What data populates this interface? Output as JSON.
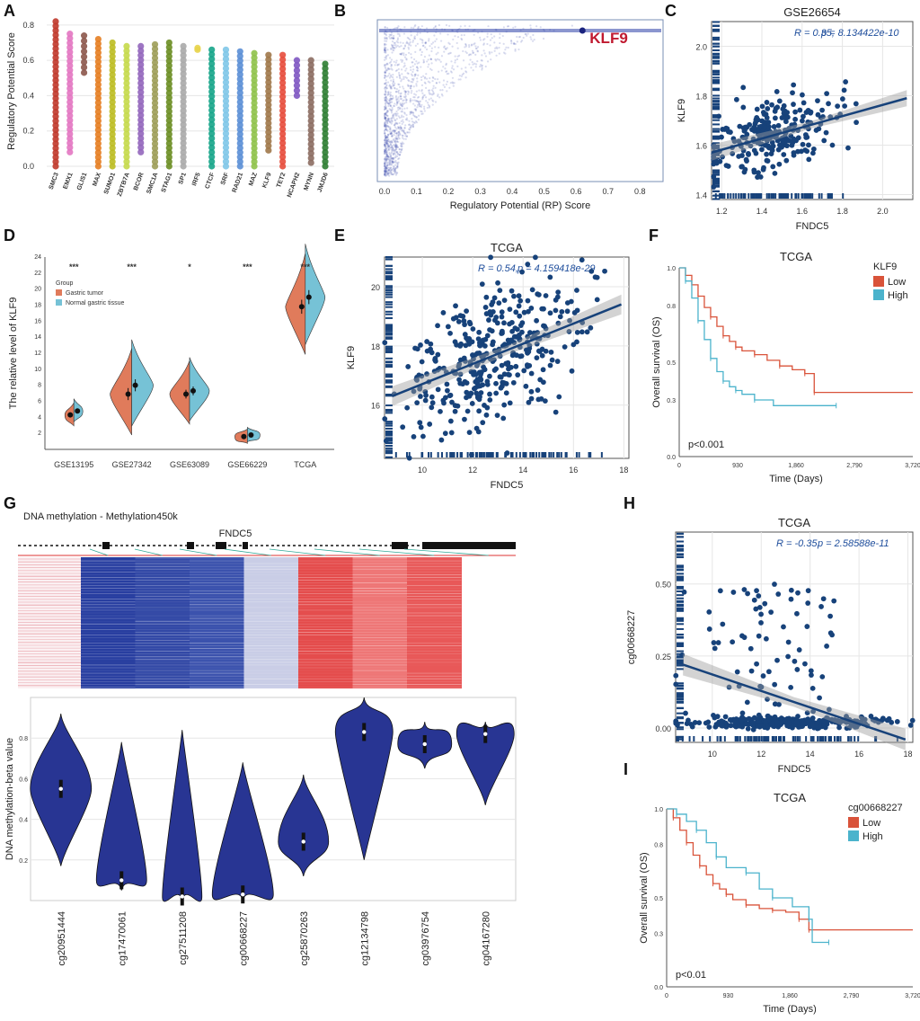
{
  "chart_data": [
    {
      "panel": "A",
      "type": "strip",
      "ylabel": "Regulatory Potential Score",
      "ylim": [
        0,
        0.85
      ],
      "yticks": [
        0.0,
        0.2,
        0.4,
        0.6,
        0.8
      ],
      "categories": [
        "SMC3",
        "EMX1",
        "GLIS1",
        "MAX",
        "SUMO1",
        "ZBTB7A",
        "BCOR",
        "SMC1A",
        "STAG1",
        "SP1",
        "IRF5",
        "CTCF",
        "SRF",
        "RAD21",
        "MAZ",
        "KLF9",
        "TET2",
        "NCAPH2",
        "MYNN",
        "JMJD6"
      ],
      "colors": [
        "#c0392b",
        "#e377c2",
        "#8c564b",
        "#e67e22",
        "#bcbd22",
        "#c5d94b",
        "#9467bd",
        "#9d9d58",
        "#6b8e23",
        "#aaaaaa",
        "#e8d44d",
        "#17a589",
        "#7fc7e8",
        "#5b8fd6",
        "#8fc24a",
        "#a0784a",
        "#e74c3c",
        "#7e57c2",
        "#8c6d62",
        "#2e7d32"
      ],
      "ranges": [
        [
          0.0,
          0.82
        ],
        [
          0.08,
          0.75
        ],
        [
          0.53,
          0.74
        ],
        [
          0.0,
          0.72
        ],
        [
          0.0,
          0.7
        ],
        [
          0.0,
          0.68
        ],
        [
          0.08,
          0.68
        ],
        [
          0.0,
          0.69
        ],
        [
          0.0,
          0.7
        ],
        [
          0.0,
          0.68
        ],
        [
          0.66,
          0.67
        ],
        [
          0.0,
          0.66
        ],
        [
          0.0,
          0.66
        ],
        [
          0.0,
          0.65
        ],
        [
          0.0,
          0.64
        ],
        [
          0.09,
          0.63
        ],
        [
          0.0,
          0.63
        ],
        [
          0.4,
          0.6
        ],
        [
          0.02,
          0.6
        ],
        [
          0.0,
          0.58
        ]
      ]
    },
    {
      "panel": "B",
      "type": "density-scatter",
      "xlabel": "Regulatory Potential (RP) Score",
      "xlim": [
        0,
        0.85
      ],
      "xticks": [
        "0.0",
        "0.1",
        "0.2",
        "0.3",
        "0.4",
        "0.5",
        "0.6",
        "0.7",
        "0.8"
      ],
      "annotation": "KLF9",
      "highlight_x": 0.62
    },
    {
      "panel": "C",
      "type": "scatter",
      "title": "GSE26654",
      "xlabel": "FNDC5",
      "ylabel": "KLF9",
      "xlim": [
        1.15,
        2.15
      ],
      "ylim": [
        1.38,
        2.1
      ],
      "xticks": [
        1.2,
        1.4,
        1.6,
        1.8,
        2.0
      ],
      "yticks": [
        1.4,
        1.6,
        1.8,
        2.0
      ],
      "xtick_labels": [
        "1.2",
        "1.4",
        "1.6",
        "1.8",
        "2.0"
      ],
      "ytick_labels": [
        "1.4",
        "1.6",
        "1.8",
        "2.0"
      ],
      "stat_R": "R = 0.35,",
      "stat_p": "p = 8.134422e-10",
      "fit": {
        "x0": 1.15,
        "y0": 1.57,
        "x1": 2.12,
        "y1": 1.79
      },
      "n_points": 260,
      "center": [
        1.45,
        1.63
      ],
      "spread": [
        0.15,
        0.07
      ]
    },
    {
      "panel": "D",
      "type": "split-violin",
      "ylabel": "The relative level of KLF9",
      "ylim": [
        0,
        24
      ],
      "yticks": [
        2,
        4,
        6,
        8,
        10,
        12,
        14,
        16,
        18,
        20,
        22,
        24
      ],
      "categories": [
        "GSE13195",
        "GSE27342",
        "GSE63089",
        "GSE66229",
        "TCGA"
      ],
      "significance": [
        "***",
        "***",
        "*",
        "***",
        "***"
      ],
      "legend_title": "Group",
      "groups": [
        {
          "name": "Gastric tumor",
          "color": "#e07b5b",
          "means": [
            4.3,
            6.9,
            6.9,
            1.6,
            17.8
          ]
        },
        {
          "name": "Normal gastric tissue",
          "color": "#76c2d6",
          "means": [
            4.8,
            8.0,
            7.3,
            1.8,
            19.0
          ]
        }
      ]
    },
    {
      "panel": "E",
      "type": "scatter",
      "title": "TCGA",
      "xlabel": "FNDC5",
      "ylabel": "KLF9",
      "xlim": [
        8.5,
        18.2
      ],
      "ylim": [
        14.2,
        21.0
      ],
      "xticks": [
        10,
        12,
        14,
        16,
        18
      ],
      "yticks": [
        16,
        18,
        20
      ],
      "xtick_labels": [
        "10",
        "12",
        "14",
        "16",
        "18"
      ],
      "ytick_labels": [
        "16",
        "18",
        "20"
      ],
      "stat_R": "R = 0.54,",
      "stat_p": "p = 4.159418e-29",
      "fit": {
        "x0": 8.8,
        "y0": 16.3,
        "x1": 17.9,
        "y1": 19.4
      },
      "n_points": 380,
      "center": [
        12.8,
        17.7
      ],
      "spread": [
        1.8,
        1.1
      ]
    },
    {
      "panel": "F",
      "type": "km",
      "title": "TCGA",
      "xlabel": "Time (Days)",
      "ylabel": "Overall survival (OS)",
      "xlim": [
        0,
        3720
      ],
      "ylim": [
        0,
        1.0
      ],
      "xticks": [
        0,
        930,
        1860,
        2790,
        3720
      ],
      "yticks": [
        0,
        0.3,
        0.5,
        0.8,
        1.0
      ],
      "xtick_labels": [
        "0",
        "930",
        "1,860",
        "2,790",
        "3,720"
      ],
      "ytick_labels": [
        "0.0",
        "0.3",
        "0.5",
        "0.8",
        "1.0"
      ],
      "legend_title": "KLF9",
      "pvalue": "p<0.001",
      "series": [
        {
          "name": "Low",
          "color": "#d9533a",
          "points": [
            [
              0,
              1.0
            ],
            [
              100,
              0.96
            ],
            [
              200,
              0.91
            ],
            [
              300,
              0.85
            ],
            [
              400,
              0.79
            ],
            [
              500,
              0.74
            ],
            [
              600,
              0.69
            ],
            [
              700,
              0.64
            ],
            [
              800,
              0.61
            ],
            [
              900,
              0.58
            ],
            [
              1000,
              0.56
            ],
            [
              1200,
              0.54
            ],
            [
              1400,
              0.51
            ],
            [
              1600,
              0.48
            ],
            [
              1800,
              0.46
            ],
            [
              2000,
              0.44
            ],
            [
              2150,
              0.44
            ],
            [
              2150,
              0.34
            ],
            [
              3720,
              0.34
            ]
          ]
        },
        {
          "name": "High",
          "color": "#4bb3cc",
          "points": [
            [
              0,
              1.0
            ],
            [
              100,
              0.93
            ],
            [
              200,
              0.84
            ],
            [
              300,
              0.72
            ],
            [
              400,
              0.62
            ],
            [
              500,
              0.52
            ],
            [
              600,
              0.45
            ],
            [
              700,
              0.4
            ],
            [
              800,
              0.37
            ],
            [
              900,
              0.35
            ],
            [
              1000,
              0.33
            ],
            [
              1200,
              0.3
            ],
            [
              1500,
              0.27
            ],
            [
              2500,
              0.27
            ]
          ]
        }
      ]
    },
    {
      "panel": "G",
      "type": "violin",
      "header": "DNA methylation - Methylation450k",
      "gene": "FNDC5",
      "ylabel": "DNA methylation-beta value",
      "ylim": [
        0,
        1.0
      ],
      "yticks": [
        0.2,
        0.4,
        0.6,
        0.8
      ],
      "categories": [
        "cg20951444",
        "cg17470061",
        "cg27511208",
        "cg00668227",
        "cg25870263",
        "cg12134798",
        "cg03976754",
        "cg04167280"
      ],
      "medians": [
        0.55,
        0.1,
        0.02,
        0.03,
        0.29,
        0.83,
        0.77,
        0.82
      ],
      "mins": [
        0.17,
        0.05,
        0.0,
        0.0,
        0.12,
        0.2,
        0.65,
        0.47
      ],
      "maxs": [
        0.92,
        0.78,
        0.84,
        0.68,
        0.62,
        1.0,
        0.88,
        0.88
      ],
      "violin_color": "#283593",
      "heatmap_colors": [
        "#e8a0a8",
        "#283ea0",
        "#3349a6",
        "#3b52ad",
        "#c9cde6",
        "#e44c4c",
        "#ee7676",
        "#e85858"
      ]
    },
    {
      "panel": "H",
      "type": "scatter",
      "title": "TCGA",
      "xlabel": "FNDC5",
      "ylabel": "cg00668227",
      "xlim": [
        8.5,
        18.2
      ],
      "ylim": [
        -0.05,
        0.68
      ],
      "xticks": [
        10,
        12,
        14,
        16,
        18
      ],
      "yticks": [
        0.0,
        0.25,
        0.5
      ],
      "xtick_labels": [
        "10",
        "12",
        "14",
        "16",
        "18"
      ],
      "ytick_labels": [
        "0.00",
        "0.25",
        "0.50"
      ],
      "stat_R": "R = -0.35,",
      "stat_p": "p = 2.58588e-11",
      "fit": {
        "x0": 8.8,
        "y0": 0.22,
        "x1": 17.9,
        "y1": -0.04
      },
      "n_points": 380,
      "center": [
        13.0,
        0.02
      ],
      "spread": [
        2.0,
        0.01
      ]
    },
    {
      "panel": "I",
      "type": "km",
      "title": "TCGA",
      "xlabel": "Time (Days)",
      "ylabel": "Overall survival (OS)",
      "xlim": [
        0,
        3720
      ],
      "ylim": [
        0,
        1.0
      ],
      "xticks": [
        0,
        930,
        1860,
        2790,
        3720
      ],
      "yticks": [
        0,
        0.3,
        0.5,
        0.8,
        1.0
      ],
      "xtick_labels": [
        "0",
        "930",
        "1,860",
        "2,790",
        "3,720"
      ],
      "ytick_labels": [
        "0.0",
        "0.3",
        "0.5",
        "0.8",
        "1.0"
      ],
      "legend_title": "cg00668227",
      "pvalue": "p<0.01",
      "series": [
        {
          "name": "Low",
          "color": "#d9533a",
          "points": [
            [
              0,
              1.0
            ],
            [
              100,
              0.95
            ],
            [
              200,
              0.88
            ],
            [
              300,
              0.81
            ],
            [
              400,
              0.74
            ],
            [
              500,
              0.68
            ],
            [
              600,
              0.63
            ],
            [
              700,
              0.58
            ],
            [
              800,
              0.55
            ],
            [
              900,
              0.52
            ],
            [
              1000,
              0.49
            ],
            [
              1200,
              0.46
            ],
            [
              1400,
              0.44
            ],
            [
              1600,
              0.43
            ],
            [
              1800,
              0.42
            ],
            [
              2000,
              0.38
            ],
            [
              2150,
              0.38
            ],
            [
              2150,
              0.32
            ],
            [
              3720,
              0.32
            ]
          ]
        },
        {
          "name": "High",
          "color": "#4bb3cc",
          "points": [
            [
              0,
              1.0
            ],
            [
              150,
              0.97
            ],
            [
              300,
              0.93
            ],
            [
              450,
              0.88
            ],
            [
              600,
              0.81
            ],
            [
              750,
              0.73
            ],
            [
              900,
              0.67
            ],
            [
              1200,
              0.64
            ],
            [
              1400,
              0.55
            ],
            [
              1600,
              0.5
            ],
            [
              1900,
              0.45
            ],
            [
              2150,
              0.38
            ],
            [
              2200,
              0.25
            ],
            [
              2450,
              0.25
            ]
          ]
        }
      ]
    }
  ],
  "labels": {
    "A": "A",
    "B": "B",
    "C": "C",
    "D": "D",
    "E": "E",
    "F": "F",
    "G": "G",
    "H": "H",
    "I": "I"
  }
}
